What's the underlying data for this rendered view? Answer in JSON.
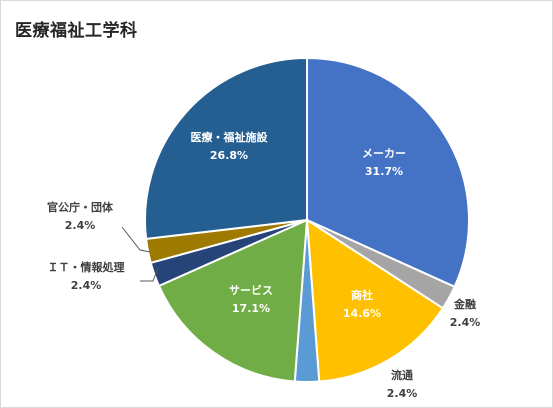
{
  "chart_data": {
    "type": "pie",
    "title": "医療福祉工学科",
    "categories": [
      "メーカー",
      "金融",
      "商社",
      "流通",
      "サービス",
      "ＩＴ・情報処理",
      "官公庁・団体",
      "医療・福祉施設"
    ],
    "values": [
      31.7,
      2.4,
      14.6,
      2.4,
      17.1,
      2.4,
      2.4,
      26.8
    ],
    "value_labels": [
      "31.7%",
      "2.4%",
      "14.6%",
      "2.4%",
      "17.1%",
      "2.4%",
      "2.4%",
      "26.8%"
    ],
    "colors": [
      "#4472C4",
      "#A5A5A5",
      "#FFC000",
      "#5B9BD5",
      "#70AD47",
      "#264478",
      "#9E7A00",
      "#255E91"
    ],
    "start_angle_deg": 0,
    "direction": "clockwise"
  }
}
